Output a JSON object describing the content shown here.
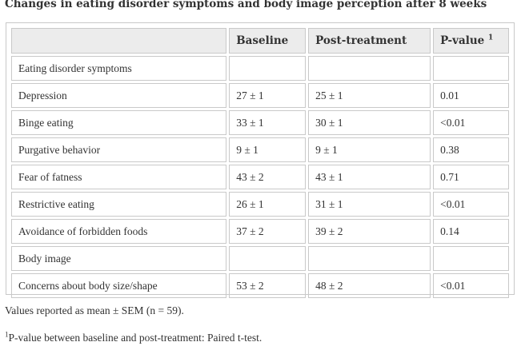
{
  "caption": "Changes in eating disorder symptoms and body image perception after 8 weeks",
  "table": {
    "headers": [
      "",
      "Baseline",
      "Post-treatment",
      "P-value"
    ],
    "pvalue_superscript": "1",
    "rows": [
      [
        "Eating disorder symptoms",
        "",
        "",
        ""
      ],
      [
        "Depression",
        "27 ± 1",
        "25 ± 1",
        "0.01"
      ],
      [
        "Binge eating",
        "33 ± 1",
        "30 ± 1",
        "<0.01"
      ],
      [
        "Purgative behavior",
        "9 ± 1",
        "9 ± 1",
        "0.38"
      ],
      [
        "Fear of fatness",
        "43 ± 2",
        "43 ± 1",
        "0.71"
      ],
      [
        "Restrictive eating",
        "26 ± 1",
        "31 ± 1",
        "<0.01"
      ],
      [
        "Avoidance of forbidden foods",
        "37 ± 2",
        "39 ± 2",
        "0.14"
      ],
      [
        "Body image",
        "",
        "",
        ""
      ],
      [
        "Concerns about body size/shape",
        "53 ± 2",
        "48 ± 2",
        "<0.01"
      ]
    ]
  },
  "footnotes": {
    "note1": "Values reported as mean ± SEM (n = 59).",
    "note2_marker": "1",
    "note2_text": "P-value between baseline and post-treatment: Paired t-test."
  }
}
